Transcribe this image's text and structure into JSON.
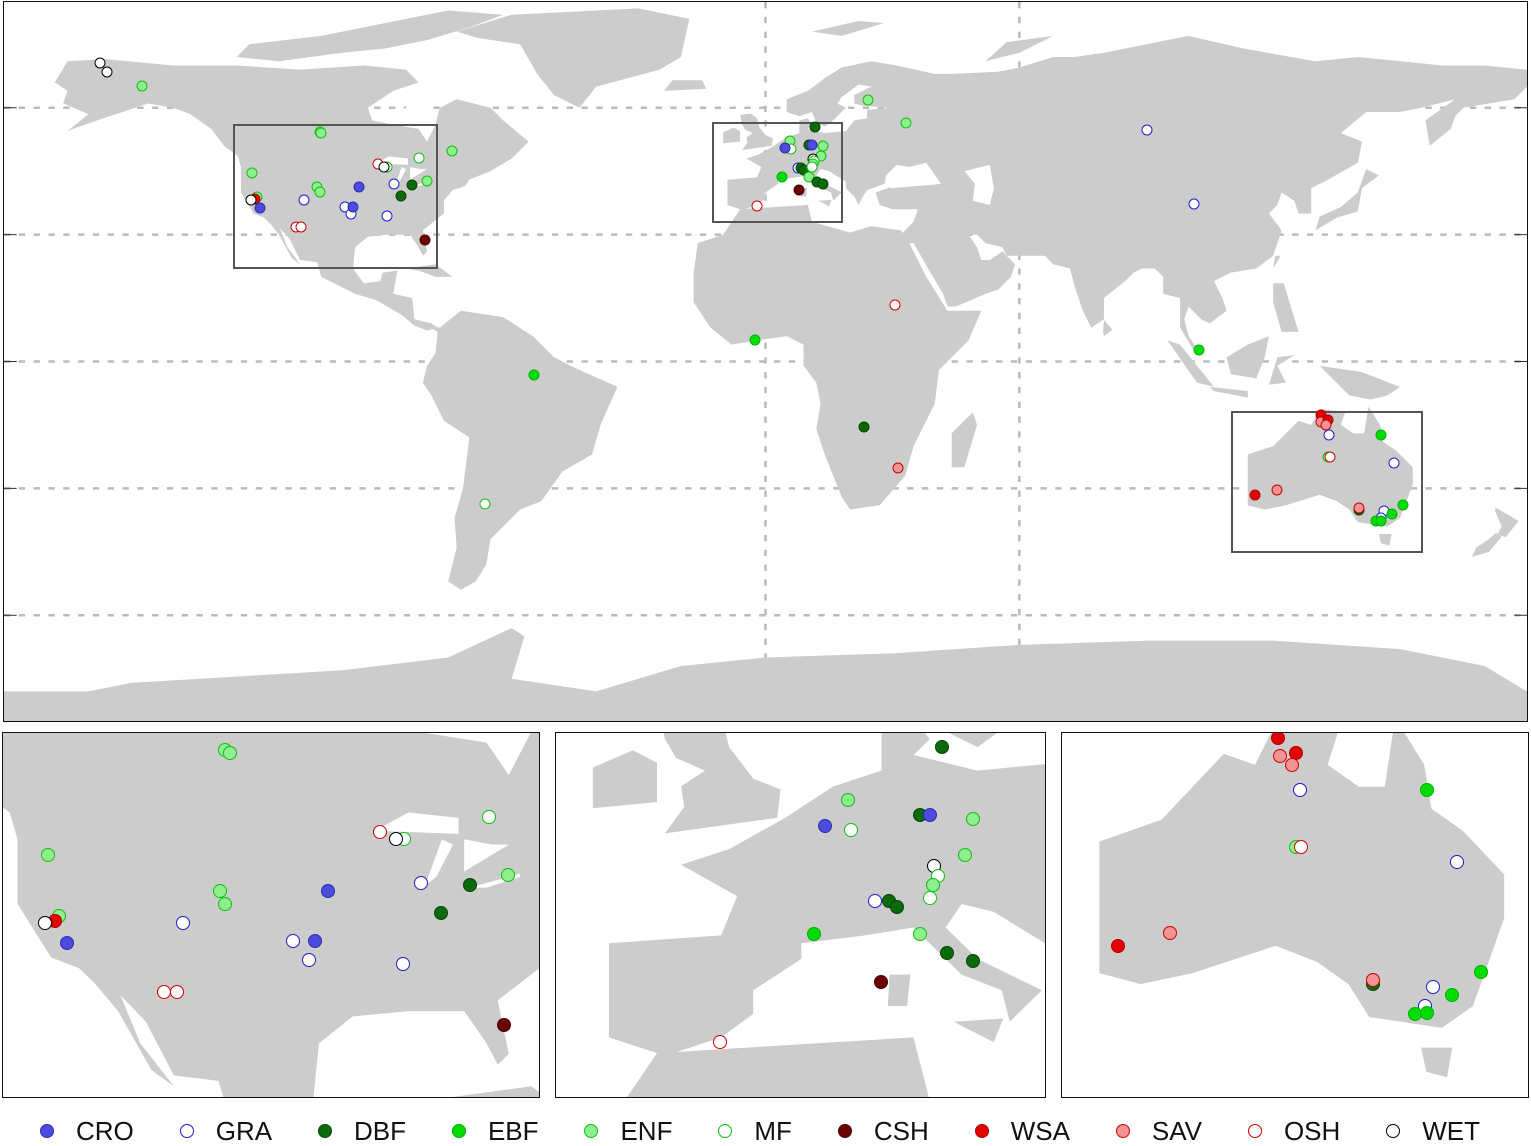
{
  "legend": [
    {
      "code": "CRO",
      "label": "CRO",
      "fill": "#4b4be0"
    },
    {
      "code": "GRA",
      "label": "GRA",
      "fill": "#ffffff",
      "stroke": "#1c1cd4"
    },
    {
      "code": "DBF",
      "label": "DBF",
      "fill": "#0b6b0b"
    },
    {
      "code": "EBF",
      "label": "EBF",
      "fill": "#00dd00"
    },
    {
      "code": "ENF",
      "label": "ENF",
      "fill": "#8eef8e"
    },
    {
      "code": "MF",
      "label": "MF",
      "fill": "#ffffff",
      "stroke": "#10c010"
    },
    {
      "code": "CSH",
      "label": "CSH",
      "fill": "#6a0000"
    },
    {
      "code": "WSA",
      "label": "WSA",
      "fill": "#e20000"
    },
    {
      "code": "SAV",
      "label": "SAV",
      "fill": "#f29494"
    },
    {
      "code": "OSH",
      "label": "OSH",
      "fill": "#ffffff",
      "stroke": "#d00000"
    },
    {
      "code": "WET",
      "label": "WET",
      "fill": "#ffffff",
      "stroke": "#000000"
    }
  ],
  "sites": [
    {
      "t": "WET",
      "lon": -157.4,
      "lat": 70.6
    },
    {
      "t": "WET",
      "lon": -155.6,
      "lat": 68.5
    },
    {
      "t": "ENF",
      "lon": -147.3,
      "lat": 65.2
    },
    {
      "t": "ENF",
      "lon": -105.4,
      "lat": 54.3
    },
    {
      "t": "ENF",
      "lon": -105.0,
      "lat": 54.0
    },
    {
      "t": "ENF",
      "lon": -121.3,
      "lat": 44.5
    },
    {
      "t": "ENF",
      "lon": -120.3,
      "lat": 38.9
    },
    {
      "t": "WSA",
      "lon": -120.6,
      "lat": 38.4
    },
    {
      "t": "WET",
      "lon": -121.5,
      "lat": 38.2
    },
    {
      "t": "CRO",
      "lon": -119.6,
      "lat": 36.3
    },
    {
      "t": "GRA",
      "lon": -109.2,
      "lat": 38.2
    },
    {
      "t": "ENF",
      "lon": -105.9,
      "lat": 41.2
    },
    {
      "t": "ENF",
      "lon": -105.4,
      "lat": 40.0
    },
    {
      "t": "GRA",
      "lon": -99.3,
      "lat": 36.5
    },
    {
      "t": "GRA",
      "lon": -97.9,
      "lat": 34.8
    },
    {
      "t": "CRO",
      "lon": -97.4,
      "lat": 36.5
    },
    {
      "t": "CRO",
      "lon": -96.2,
      "lat": 41.2
    },
    {
      "t": "OSH",
      "lon": -91.5,
      "lat": 46.7
    },
    {
      "t": "MF",
      "lon": -89.4,
      "lat": 46.0
    },
    {
      "t": "WET",
      "lon": -90.1,
      "lat": 46.0
    },
    {
      "t": "DBF",
      "lon": -86.1,
      "lat": 39.1
    },
    {
      "t": "DBF",
      "lon": -83.5,
      "lat": 41.7
    },
    {
      "t": "GRA",
      "lon": -87.9,
      "lat": 41.9
    },
    {
      "t": "GRA",
      "lon": -89.5,
      "lat": 34.4
    },
    {
      "t": "MF",
      "lon": -81.8,
      "lat": 48.1
    },
    {
      "t": "ENF",
      "lon": -80.1,
      "lat": 42.7
    },
    {
      "t": "ENF",
      "lon": -74.2,
      "lat": 49.8
    },
    {
      "t": "OSH",
      "lon": -110.9,
      "lat": 31.8
    },
    {
      "t": "OSH",
      "lon": -109.7,
      "lat": 31.8
    },
    {
      "t": "CSH",
      "lon": -80.4,
      "lat": 28.7
    },
    {
      "t": "ENF",
      "lon": 24.3,
      "lat": 61.8
    },
    {
      "t": "ENF",
      "lon": 33.1,
      "lat": 56.4
    },
    {
      "t": "DBF",
      "lon": 11.8,
      "lat": 55.5
    },
    {
      "t": "ENF",
      "lon": 5.9,
      "lat": 52.1
    },
    {
      "t": "MF",
      "lon": 6.1,
      "lat": 50.2
    },
    {
      "t": "CRO",
      "lon": 4.5,
      "lat": 50.5
    },
    {
      "t": "DBF",
      "lon": 10.4,
      "lat": 51.2
    },
    {
      "t": "CRO",
      "lon": 11.0,
      "lat": 51.2
    },
    {
      "t": "ENF",
      "lon": 13.7,
      "lat": 50.9
    },
    {
      "t": "ENF",
      "lon": 13.2,
      "lat": 48.6
    },
    {
      "t": "WET",
      "lon": 11.3,
      "lat": 47.9
    },
    {
      "t": "MF",
      "lon": 11.5,
      "lat": 47.3
    },
    {
      "t": "ENF",
      "lon": 11.2,
      "lat": 46.7
    },
    {
      "t": "GRA",
      "lon": 7.6,
      "lat": 45.7
    },
    {
      "t": "DBF",
      "lon": 8.5,
      "lat": 45.7
    },
    {
      "t": "DBF",
      "lon": 9.0,
      "lat": 45.3
    },
    {
      "t": "MF",
      "lon": 11.0,
      "lat": 45.9
    },
    {
      "t": "ENF",
      "lon": 10.4,
      "lat": 43.6
    },
    {
      "t": "EBF",
      "lon": 3.8,
      "lat": 43.6
    },
    {
      "t": "DBF",
      "lon": 12.1,
      "lat": 42.4
    },
    {
      "t": "DBF",
      "lon": 13.7,
      "lat": 41.9
    },
    {
      "t": "CSH",
      "lon": 8.0,
      "lat": 40.5
    },
    {
      "t": "OSH",
      "lon": -2.1,
      "lat": 36.7
    },
    {
      "t": "GRA",
      "lon": 90.1,
      "lat": 54.7
    },
    {
      "t": "GRA",
      "lon": 101.2,
      "lat": 37.2
    },
    {
      "t": "EBF",
      "lon": 102.4,
      "lat": 2.8
    },
    {
      "t": "EBF",
      "lon": -2.6,
      "lat": 5.2
    },
    {
      "t": "OSH",
      "lon": 30.5,
      "lat": 13.3
    },
    {
      "t": "DBF",
      "lon": 23.2,
      "lat": -15.6
    },
    {
      "t": "SAV",
      "lon": 31.4,
      "lat": -25.1
    },
    {
      "t": "EBF",
      "lon": -54.8,
      "lat": -3.3
    },
    {
      "t": "MF",
      "lon": -66.2,
      "lat": -33.6
    },
    {
      "t": "WSA",
      "lon": 131.2,
      "lat": -12.6
    },
    {
      "t": "SAV",
      "lon": 131.4,
      "lat": -14.2
    },
    {
      "t": "WSA",
      "lon": 132.9,
      "lat": -13.9
    },
    {
      "t": "SAV",
      "lon": 132.6,
      "lat": -15.0
    },
    {
      "t": "GRA",
      "lon": 133.3,
      "lat": -17.3
    },
    {
      "t": "EBF",
      "lon": 145.6,
      "lat": -17.3
    },
    {
      "t": "ENF",
      "lon": 132.9,
      "lat": -22.5
    },
    {
      "t": "OSH",
      "lon": 133.4,
      "lat": -22.5
    },
    {
      "t": "GRA",
      "lon": 148.5,
      "lat": -23.9
    },
    {
      "t": "WSA",
      "lon": 115.8,
      "lat": -31.5
    },
    {
      "t": "SAV",
      "lon": 120.8,
      "lat": -30.3
    },
    {
      "t": "DBF",
      "lon": 140.4,
      "lat": -35.0
    },
    {
      "t": "SAV",
      "lon": 140.4,
      "lat": -34.6
    },
    {
      "t": "GRA",
      "lon": 146.1,
      "lat": -35.3
    },
    {
      "t": "GRA",
      "lon": 145.4,
      "lat": -37.0
    },
    {
      "t": "EBF",
      "lon": 150.8,
      "lat": -33.9
    },
    {
      "t": "EBF",
      "lon": 148.0,
      "lat": -36.0
    },
    {
      "t": "EBF",
      "lon": 144.4,
      "lat": -37.7
    },
    {
      "t": "EBF",
      "lon": 145.6,
      "lat": -37.6
    }
  ]
}
